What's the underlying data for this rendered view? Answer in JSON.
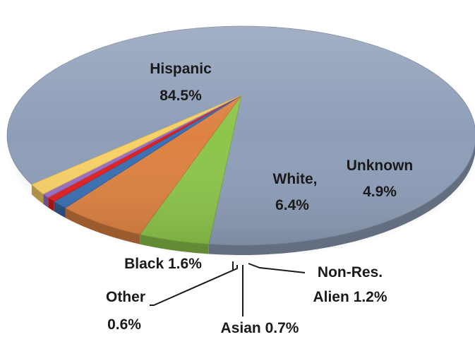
{
  "chart_data": {
    "type": "pie",
    "style": "3d-exploded-tilt",
    "slices": [
      {
        "label": "Hispanic",
        "value": 84.5,
        "color": "#8E9EB8"
      },
      {
        "label": "Unknown",
        "value": 4.9,
        "color": "#8DC54B"
      },
      {
        "label": "White,",
        "value": 6.4,
        "color": "#DD8242"
      },
      {
        "label": "Non-Res. Alien",
        "value": 1.2,
        "color": "#3A6FB3"
      },
      {
        "label": "Asian",
        "value": 0.7,
        "color": "#E02020"
      },
      {
        "label": "Other",
        "value": 0.6,
        "color": "#9A6FC2"
      },
      {
        "label": "Black",
        "value": 1.6,
        "color": "#F7D066"
      }
    ],
    "labels": {
      "hispanic_name": "Hispanic",
      "hispanic_pct": "84.5%",
      "unknown_name": "Unknown",
      "unknown_pct": "4.9%",
      "white_name": "White,",
      "white_pct": "6.4%",
      "black": "Black 1.6%",
      "nonres_line1": "Non-Res.",
      "nonres_line2": "Alien 1.2%",
      "other_name": "Other",
      "other_pct": "0.6%",
      "asian": "Asian 0.7%"
    }
  }
}
